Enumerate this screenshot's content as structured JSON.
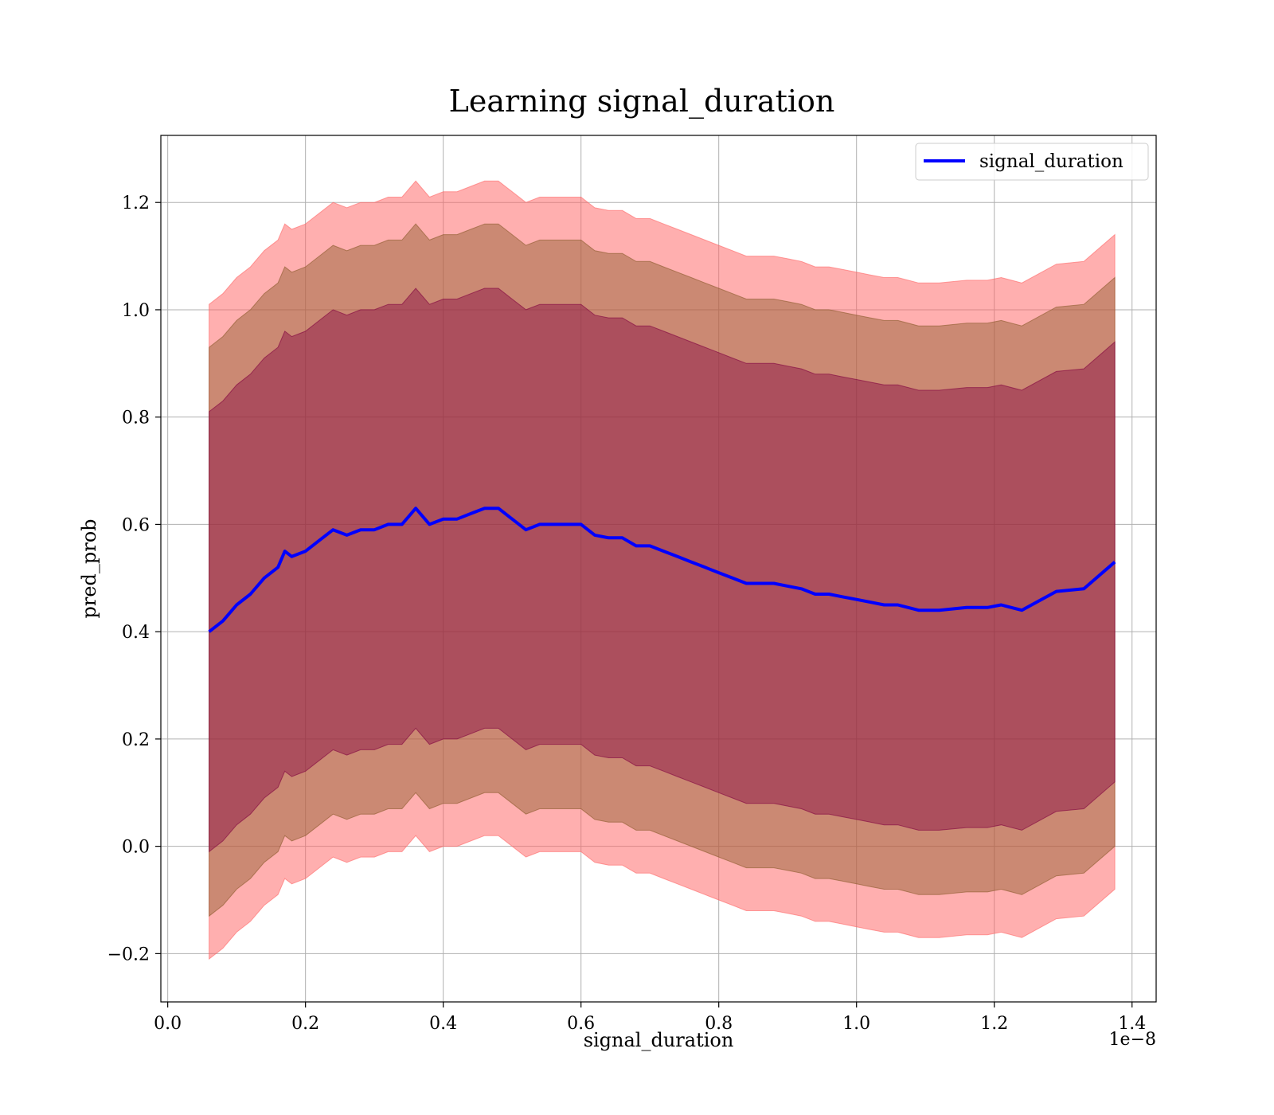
{
  "chart_data": {
    "type": "line",
    "title": "Learning signal_duration",
    "xlabel": "signal_duration",
    "ylabel": "pred_prob",
    "x_offset_label": "1e−8",
    "xlim": [
      -0.01,
      1.435
    ],
    "ylim": [
      -0.29,
      1.325
    ],
    "x_ticks": [
      0.0,
      0.2,
      0.4,
      0.6,
      0.8,
      1.0,
      1.2,
      1.4
    ],
    "x_tick_labels": [
      "0.0",
      "0.2",
      "0.4",
      "0.6",
      "0.8",
      "1.0",
      "1.2",
      "1.4"
    ],
    "y_ticks": [
      -0.2,
      0.0,
      0.2,
      0.4,
      0.6,
      0.8,
      1.0,
      1.2
    ],
    "y_tick_labels": [
      "−0.2",
      "0.0",
      "0.2",
      "0.4",
      "0.6",
      "0.8",
      "1.0",
      "1.2"
    ],
    "grid": true,
    "legend_position": "top-right",
    "colors": {
      "line": "#0000ff",
      "band_outer": "#ff6666",
      "band_middle": "#8b5a2b",
      "band_inner": "#800040"
    },
    "series": [
      {
        "name": "signal_duration",
        "x": [
          0.06,
          0.08,
          0.1,
          0.12,
          0.14,
          0.16,
          0.17,
          0.18,
          0.2,
          0.22,
          0.24,
          0.26,
          0.28,
          0.3,
          0.32,
          0.34,
          0.36,
          0.38,
          0.4,
          0.42,
          0.44,
          0.46,
          0.48,
          0.5,
          0.52,
          0.54,
          0.56,
          0.58,
          0.6,
          0.62,
          0.64,
          0.66,
          0.68,
          0.7,
          0.72,
          0.74,
          0.76,
          0.78,
          0.8,
          0.82,
          0.84,
          0.86,
          0.88,
          0.9,
          0.92,
          0.94,
          0.96,
          0.98,
          1.0,
          1.02,
          1.04,
          1.06,
          1.09,
          1.12,
          1.16,
          1.19,
          1.21,
          1.24,
          1.29,
          1.33,
          1.375
        ],
        "y": [
          0.4,
          0.42,
          0.45,
          0.47,
          0.5,
          0.52,
          0.55,
          0.54,
          0.55,
          0.57,
          0.59,
          0.58,
          0.59,
          0.59,
          0.6,
          0.6,
          0.63,
          0.6,
          0.61,
          0.61,
          0.62,
          0.63,
          0.63,
          0.61,
          0.59,
          0.6,
          0.6,
          0.6,
          0.6,
          0.58,
          0.575,
          0.575,
          0.56,
          0.56,
          0.55,
          0.54,
          0.53,
          0.52,
          0.51,
          0.5,
          0.49,
          0.49,
          0.49,
          0.485,
          0.48,
          0.47,
          0.47,
          0.465,
          0.46,
          0.455,
          0.45,
          0.45,
          0.44,
          0.44,
          0.445,
          0.445,
          0.45,
          0.44,
          0.475,
          0.48,
          0.53
        ]
      }
    ],
    "bands": [
      {
        "level": "outer",
        "half_width": 0.61
      },
      {
        "level": "middle",
        "half_width": 0.53
      },
      {
        "level": "inner",
        "half_width": 0.41
      }
    ]
  }
}
